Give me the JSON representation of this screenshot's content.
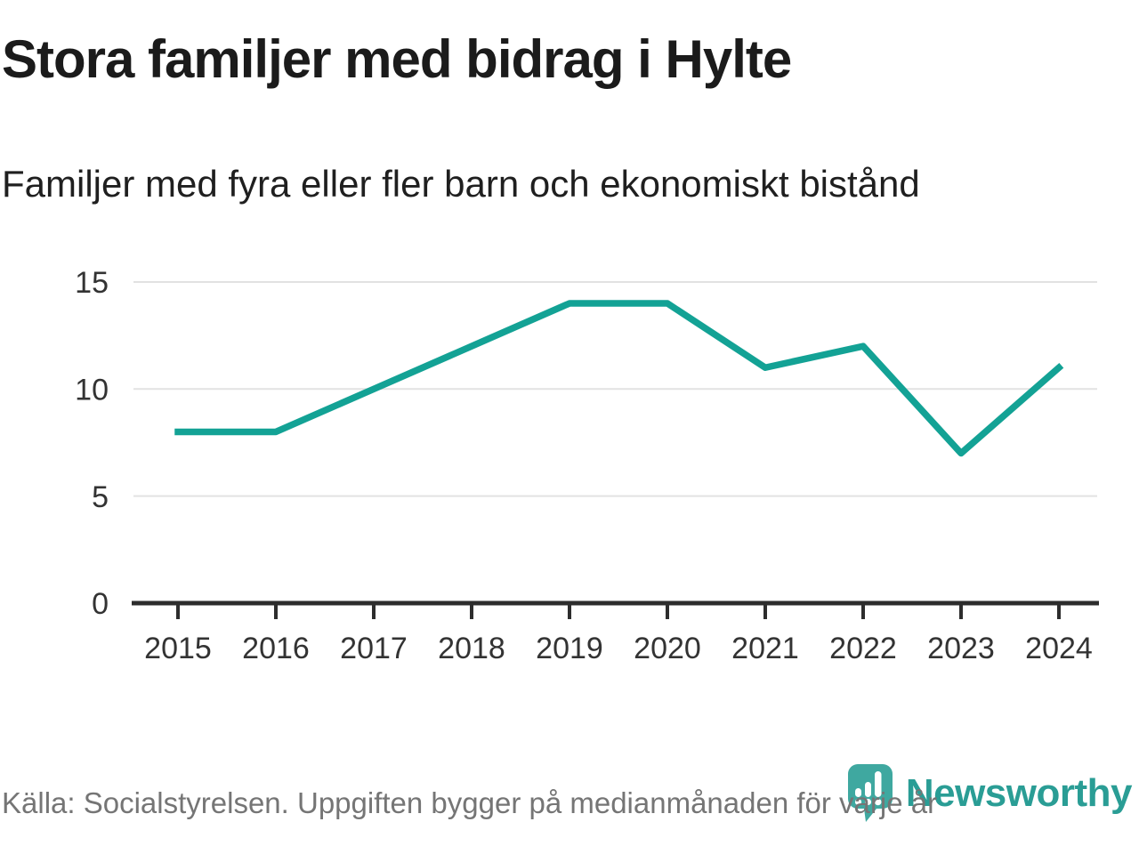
{
  "header": {
    "title": "Stora familjer med bidrag i Hylte",
    "subtitle": "Familjer med fyra eller fler barn och ekonomiskt bistånd"
  },
  "chart_data": {
    "type": "line",
    "title": "Stora familjer med bidrag i Hylte",
    "subtitle": "Familjer med fyra eller fler barn och ekonomiskt bistånd",
    "x": [
      2015,
      2016,
      2017,
      2018,
      2019,
      2020,
      2021,
      2022,
      2023,
      2024
    ],
    "series": [
      {
        "name": "Familjer med fyra eller fler barn och ekonomiskt bistånd",
        "values": [
          8,
          8,
          10,
          12,
          14,
          14,
          11,
          12,
          7,
          11
        ]
      }
    ],
    "yticks": [
      0,
      5,
      10,
      15
    ],
    "ylim": [
      0,
      16.5
    ],
    "xlabel": "",
    "ylabel": "",
    "grid": "horizontal",
    "legend_position": "none",
    "line_color": "#13A295",
    "grid_color": "#E2E2E2",
    "axis_color": "#2D2D2D",
    "tick_label_color": "#333333"
  },
  "footer": {
    "source": "Källa: Socialstyrelsen. Uppgiften bygger på medianmånaden för varje år"
  },
  "logo": {
    "text": "Newsworthy",
    "text_color": "#2A9D95",
    "icon_color": "#3FA8A0",
    "icon": "newsworthy-pin-barchart-icon"
  }
}
